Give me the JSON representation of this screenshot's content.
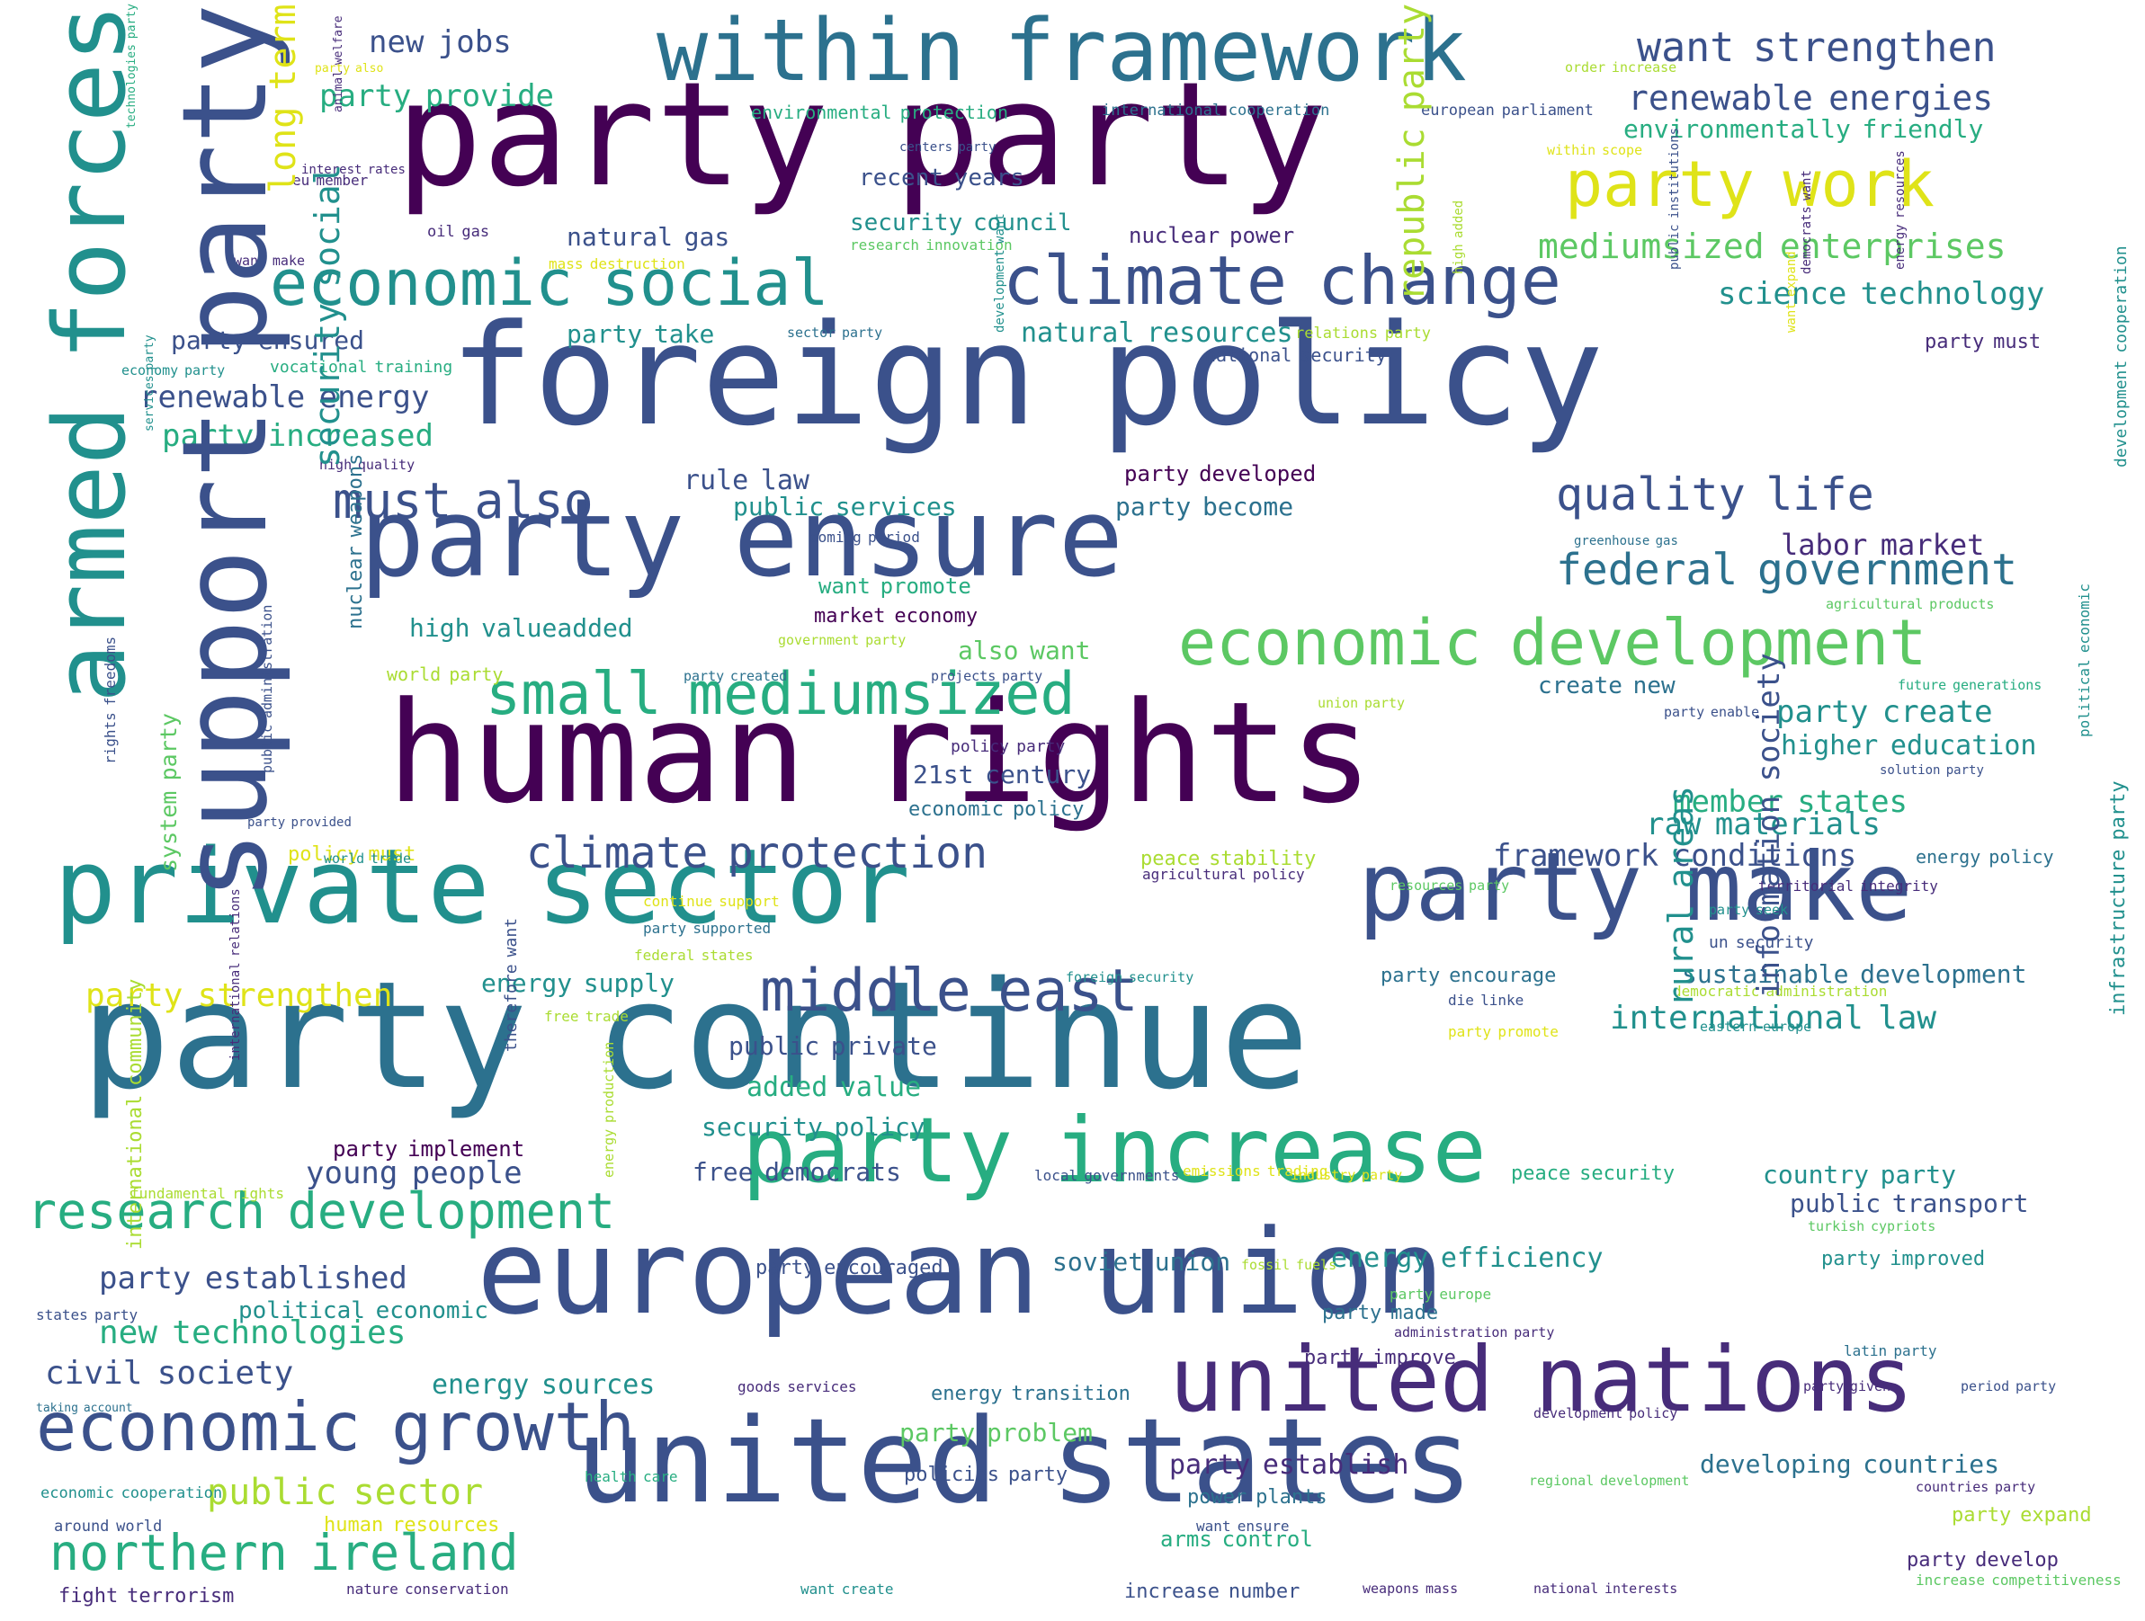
{
  "colors": {
    "background": "#ffffff",
    "palette": {
      "a": "#440154",
      "b": "#472c7a",
      "c": "#3b518b",
      "d": "#2c718e",
      "e": "#21908d",
      "f": "#27ad81",
      "g": "#5cc863",
      "h": "#aadc32",
      "i": "#dfe318"
    }
  },
  "words": [
    {
      "text": "party party",
      "color": "a"
    },
    {
      "text": "foreign policy",
      "color": "c"
    },
    {
      "text": "human rights",
      "color": "a"
    },
    {
      "text": "party continue",
      "color": "d"
    },
    {
      "text": "european union",
      "color": "c"
    },
    {
      "text": "united states",
      "color": "c"
    },
    {
      "text": "party ensure",
      "color": "c"
    },
    {
      "text": "within framework",
      "color": "d"
    },
    {
      "text": "private sector",
      "color": "e"
    },
    {
      "text": "party make",
      "color": "c"
    },
    {
      "text": "party increase",
      "color": "f"
    },
    {
      "text": "united nations",
      "color": "b"
    },
    {
      "text": "economic growth",
      "color": "c"
    },
    {
      "text": "climate change",
      "color": "c"
    },
    {
      "text": "economic social",
      "color": "e"
    },
    {
      "text": "economic development",
      "color": "g"
    },
    {
      "text": "party work",
      "color": "i"
    },
    {
      "text": "middle east",
      "color": "c"
    },
    {
      "text": "research development",
      "color": "f"
    },
    {
      "text": "small mediumsized",
      "color": "f"
    },
    {
      "text": "northern ireland",
      "color": "f"
    },
    {
      "text": "quality life",
      "color": "c"
    },
    {
      "text": "must also",
      "color": "c"
    },
    {
      "text": "climate protection",
      "color": "c"
    },
    {
      "text": "want strengthen",
      "color": "c"
    },
    {
      "text": "renewable energies",
      "color": "c"
    },
    {
      "text": "mediumsized enterprises",
      "color": "g"
    },
    {
      "text": "federal government",
      "color": "d"
    },
    {
      "text": "international law",
      "color": "e"
    },
    {
      "text": "public sector",
      "color": "h"
    },
    {
      "text": "civil society",
      "color": "c"
    },
    {
      "text": "young people",
      "color": "c"
    },
    {
      "text": "new technologies",
      "color": "f"
    },
    {
      "text": "party strengthen",
      "color": "i"
    },
    {
      "text": "framework conditions",
      "color": "c"
    },
    {
      "text": "raw materials",
      "color": "e"
    },
    {
      "text": "member states",
      "color": "f"
    },
    {
      "text": "party create",
      "color": "e"
    },
    {
      "text": "higher education",
      "color": "e"
    },
    {
      "text": "science technology",
      "color": "e"
    },
    {
      "text": "environmentally friendly",
      "color": "f"
    },
    {
      "text": "new jobs",
      "color": "c"
    },
    {
      "text": "party provide",
      "color": "f"
    },
    {
      "text": "renewable energy",
      "color": "c"
    },
    {
      "text": "party increased",
      "color": "f"
    },
    {
      "text": "party ensured",
      "color": "c"
    },
    {
      "text": "rule law",
      "color": "c"
    },
    {
      "text": "public services",
      "color": "e"
    },
    {
      "text": "party become",
      "color": "d"
    },
    {
      "text": "natural resources",
      "color": "e"
    },
    {
      "text": "natural gas",
      "color": "c"
    },
    {
      "text": "security council",
      "color": "e"
    },
    {
      "text": "recent years",
      "color": "c"
    },
    {
      "text": "nuclear power",
      "color": "b"
    },
    {
      "text": "party take",
      "color": "e"
    },
    {
      "text": "high valueadded",
      "color": "e"
    },
    {
      "text": "also want",
      "color": "g"
    },
    {
      "text": "21st century",
      "color": "c"
    },
    {
      "text": "added value",
      "color": "f"
    },
    {
      "text": "security policy",
      "color": "e"
    },
    {
      "text": "free democrats",
      "color": "c"
    },
    {
      "text": "public private",
      "color": "c"
    },
    {
      "text": "energy supply",
      "color": "e"
    },
    {
      "text": "party established",
      "color": "c"
    },
    {
      "text": "political economic",
      "color": "e"
    },
    {
      "text": "energy sources",
      "color": "e"
    },
    {
      "text": "party problem",
      "color": "g"
    },
    {
      "text": "party establish",
      "color": "b"
    },
    {
      "text": "developing countries",
      "color": "d"
    },
    {
      "text": "sustainable development",
      "color": "d"
    },
    {
      "text": "country party",
      "color": "e"
    },
    {
      "text": "public transport",
      "color": "c"
    },
    {
      "text": "energy efficiency",
      "color": "e"
    },
    {
      "text": "soviet union",
      "color": "d"
    },
    {
      "text": "labor market",
      "color": "b"
    },
    {
      "text": "party developed",
      "color": "a"
    },
    {
      "text": "want promote",
      "color": "f"
    },
    {
      "text": "create new",
      "color": "d"
    },
    {
      "text": "party expand",
      "color": "h"
    },
    {
      "text": "party develop",
      "color": "b"
    },
    {
      "text": "increase number",
      "color": "c"
    },
    {
      "text": "party improve",
      "color": "b"
    },
    {
      "text": "party made",
      "color": "d"
    },
    {
      "text": "power plants",
      "color": "d"
    },
    {
      "text": "arms control",
      "color": "f"
    },
    {
      "text": "energy transition",
      "color": "d"
    },
    {
      "text": "human resources",
      "color": "i"
    },
    {
      "text": "policies party",
      "color": "c"
    },
    {
      "text": "party improved",
      "color": "e"
    },
    {
      "text": "peace security",
      "color": "f"
    },
    {
      "text": "party encouraged",
      "color": "c"
    },
    {
      "text": "party must",
      "color": "b"
    },
    {
      "text": "policy must",
      "color": "i"
    },
    {
      "text": "peace stability",
      "color": "h"
    },
    {
      "text": "energy policy",
      "color": "d"
    },
    {
      "text": "party encourage",
      "color": "d"
    },
    {
      "text": "economic policy",
      "color": "d"
    },
    {
      "text": "policy party",
      "color": "b"
    },
    {
      "text": "market economy",
      "color": "a"
    },
    {
      "text": "national security",
      "color": "c"
    },
    {
      "text": "vocational training",
      "color": "f"
    },
    {
      "text": "environmental protection",
      "color": "f"
    },
    {
      "text": "international cooperation",
      "color": "d"
    },
    {
      "text": "european parliament",
      "color": "c"
    },
    {
      "text": "research innovation",
      "color": "g"
    },
    {
      "text": "greenhouse gas",
      "color": "d"
    },
    {
      "text": "agricultural products",
      "color": "g"
    },
    {
      "text": "future generations",
      "color": "f"
    },
    {
      "text": "solution party",
      "color": "c"
    },
    {
      "text": "territorial integrity",
      "color": "b"
    },
    {
      "text": "resources party",
      "color": "g"
    },
    {
      "text": "party seek",
      "color": "e"
    },
    {
      "text": "un security",
      "color": "c"
    },
    {
      "text": "democratic administration",
      "color": "h"
    },
    {
      "text": "die linke",
      "color": "c"
    },
    {
      "text": "party promote",
      "color": "i"
    },
    {
      "text": "eastern europe",
      "color": "e"
    },
    {
      "text": "foreign security",
      "color": "e"
    },
    {
      "text": "continue support",
      "color": "i"
    },
    {
      "text": "party supported",
      "color": "d"
    },
    {
      "text": "federal states",
      "color": "h"
    },
    {
      "text": "agricultural policy",
      "color": "b"
    },
    {
      "text": "free trade",
      "color": "h"
    },
    {
      "text": "party implement",
      "color": "a"
    },
    {
      "text": "party created",
      "color": "d"
    },
    {
      "text": "projects party",
      "color": "c"
    },
    {
      "text": "government party",
      "color": "h"
    },
    {
      "text": "world party",
      "color": "h"
    },
    {
      "text": "union party",
      "color": "h"
    },
    {
      "text": "party enable",
      "color": "c"
    },
    {
      "text": "latin party",
      "color": "d"
    },
    {
      "text": "party provided",
      "color": "c"
    },
    {
      "text": "world trade",
      "color": "e"
    },
    {
      "text": "fossil fuels",
      "color": "h"
    },
    {
      "text": "emissions trading",
      "color": "i"
    },
    {
      "text": "local governments",
      "color": "c"
    },
    {
      "text": "industry party",
      "color": "i"
    },
    {
      "text": "fundamental rights",
      "color": "h"
    },
    {
      "text": "party europe",
      "color": "g"
    },
    {
      "text": "administration party",
      "color": "b"
    },
    {
      "text": "turkish cypriots",
      "color": "g"
    },
    {
      "text": "countries party",
      "color": "b"
    },
    {
      "text": "period party",
      "color": "c"
    },
    {
      "text": "party given",
      "color": "b"
    },
    {
      "text": "development policy",
      "color": "b"
    },
    {
      "text": "goods services",
      "color": "b"
    },
    {
      "text": "regional development",
      "color": "g"
    },
    {
      "text": "health care",
      "color": "f"
    },
    {
      "text": "want ensure",
      "color": "c"
    },
    {
      "text": "want create",
      "color": "e"
    },
    {
      "text": "weapons mass",
      "color": "b"
    },
    {
      "text": "national interests",
      "color": "b"
    },
    {
      "text": "increase competitiveness",
      "color": "g"
    },
    {
      "text": "nature conservation",
      "color": "b"
    },
    {
      "text": "fight terrorism",
      "color": "b"
    },
    {
      "text": "around world",
      "color": "c"
    },
    {
      "text": "economic cooperation",
      "color": "e"
    },
    {
      "text": "taking account",
      "color": "d"
    },
    {
      "text": "states party",
      "color": "c"
    },
    {
      "text": "sector party",
      "color": "d"
    },
    {
      "text": "relations party",
      "color": "h"
    },
    {
      "text": "coming period",
      "color": "c"
    },
    {
      "text": "economy party",
      "color": "e"
    },
    {
      "text": "high quality",
      "color": "b"
    },
    {
      "text": "oil gas",
      "color": "b"
    },
    {
      "text": "eu member",
      "color": "b"
    },
    {
      "text": "interest rates",
      "color": "b"
    },
    {
      "text": "mass destruction",
      "color": "i"
    },
    {
      "text": "want make",
      "color": "b"
    },
    {
      "text": "centers party",
      "color": "c"
    },
    {
      "text": "order increase",
      "color": "h"
    },
    {
      "text": "within scope",
      "color": "i"
    },
    {
      "text": "party also",
      "color": "i"
    },
    {
      "text": "support party",
      "color": "c"
    },
    {
      "text": "armed forces",
      "color": "e"
    },
    {
      "text": "long term",
      "color": "i"
    },
    {
      "text": "security social",
      "color": "e"
    },
    {
      "text": "republic party",
      "color": "h"
    },
    {
      "text": "system party",
      "color": "g"
    },
    {
      "text": "nuclear weapons",
      "color": "d"
    },
    {
      "text": "rural areas",
      "color": "e"
    },
    {
      "text": "information society",
      "color": "c"
    },
    {
      "text": "international community",
      "color": "h"
    },
    {
      "text": "infrastructure party",
      "color": "e"
    },
    {
      "text": "development cooperation",
      "color": "e"
    },
    {
      "text": "political economic",
      "color": "e"
    },
    {
      "text": "public administration",
      "color": "c"
    },
    {
      "text": "rights freedoms",
      "color": "c"
    },
    {
      "text": "international relations",
      "color": "b"
    },
    {
      "text": "therefore want",
      "color": "c"
    },
    {
      "text": "energy production",
      "color": "h"
    },
    {
      "text": "animal welfare",
      "color": "b"
    },
    {
      "text": "technologies party",
      "color": "f"
    },
    {
      "text": "services party",
      "color": "e"
    },
    {
      "text": "development want",
      "color": "e"
    },
    {
      "text": "public institutions",
      "color": "c"
    },
    {
      "text": "high added",
      "color": "h"
    },
    {
      "text": "want expand",
      "color": "i"
    },
    {
      "text": "democrats want",
      "color": "b"
    },
    {
      "text": "energy resources",
      "color": "b"
    }
  ]
}
